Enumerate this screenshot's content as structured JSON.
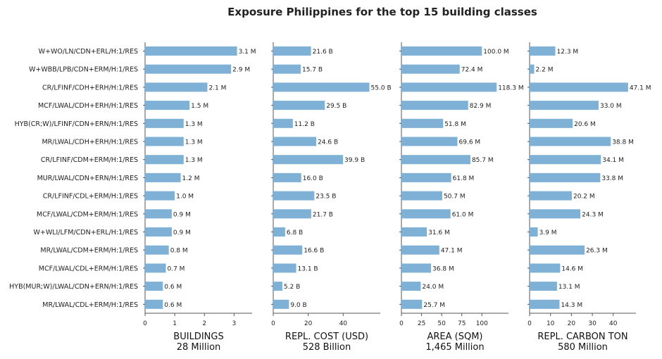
{
  "title": "Exposure Philippines for the top 15 building classes",
  "colors": {
    "bar": "#7fb0d5",
    "axis": "#555555",
    "text": "#222222"
  },
  "chart_data": {
    "type": "bar",
    "orientation": "horizontal",
    "title": "Exposure Philippines for the top 15 building classes",
    "categories": [
      "W+WO/LN/CDN+ERL/H:1/RES",
      "W+WBB/LPB/CDN+ERM/H:1/RES",
      "CR/LFINF/CDH+ERH/H:1/RES",
      "MCF/LWAL/CDH+ERH/H:1/RES",
      "HYB(CR;W)/LFINF/CDN+ERN/H:1/RES",
      "MR/LWAL/CDH+ERH/H:1/RES",
      "CR/LFINF/CDM+ERM/H:1/RES",
      "MUR/LWAL/CDN+ERN/H:1/RES",
      "CR/LFINF/CDL+ERM/H:1/RES",
      "MCF/LWAL/CDM+ERM/H:1/RES",
      "W+WLI/LFM/CDN+ERL/H:1/RES",
      "MR/LWAL/CDM+ERM/H:1/RES",
      "MCF/LWAL/CDL+ERM/H:1/RES",
      "HYB(MUR;W)/LWAL/CDN+ERN/H:1/RES",
      "MR/LWAL/CDL+ERM/H:1/RES"
    ],
    "series": [
      {
        "xlabel": "BUILDINGS",
        "total": "28 Million",
        "xlim": [
          0,
          3.3
        ],
        "ticks": [
          "0",
          "1",
          "2",
          "3"
        ],
        "tick_values": [
          0,
          1,
          2,
          3
        ],
        "values": [
          3.1,
          2.9,
          2.1,
          1.5,
          1.3,
          1.3,
          1.3,
          1.2,
          1.0,
          0.9,
          0.9,
          0.8,
          0.7,
          0.6,
          0.6
        ],
        "labels": [
          "3.1 M",
          "2.9 M",
          "2.1 M",
          "1.5 M",
          "1.3 M",
          "1.3 M",
          "1.3 M",
          "1.2 M",
          "1.0 M",
          "0.9 M",
          "0.9 M",
          "0.8 M",
          "0.7 M",
          "0.6 M",
          "0.6 M"
        ]
      },
      {
        "xlabel": "REPL. COST (USD)",
        "total": "528 Billion",
        "xlim": [
          0,
          58
        ],
        "ticks": [
          "0",
          "20",
          "40"
        ],
        "tick_values": [
          0,
          20,
          40
        ],
        "values": [
          21.6,
          15.7,
          55.0,
          29.5,
          11.2,
          24.6,
          39.9,
          16.0,
          23.5,
          21.7,
          6.8,
          16.6,
          13.1,
          5.2,
          9.0
        ],
        "labels": [
          "21.6 B",
          "15.7 B",
          "55.0 B",
          "29.5 B",
          "11.2 B",
          "24.6 B",
          "39.9 B",
          "16.0 B",
          "23.5 B",
          "21.7 B",
          "6.8 B",
          "16.6 B",
          "13.1 B",
          "5.2 B",
          "9.0 B"
        ]
      },
      {
        "xlabel": "AREA (SQM)",
        "total": "1,465 Million",
        "xlim": [
          0,
          126
        ],
        "ticks": [
          "0",
          "25",
          "50",
          "75",
          "100"
        ],
        "tick_values": [
          0,
          25,
          50,
          75,
          100
        ],
        "values": [
          100.0,
          72.4,
          118.3,
          82.9,
          51.8,
          69.6,
          85.7,
          61.8,
          50.7,
          61.0,
          31.6,
          47.1,
          36.8,
          24.0,
          25.7
        ],
        "labels": [
          "100.0 M",
          "72.4 M",
          "118.3 M",
          "82.9 M",
          "51.8 M",
          "69.6 M",
          "85.7 M",
          "61.8 M",
          "50.7 M",
          "61.0 M",
          "31.6 M",
          "47.1 M",
          "36.8 M",
          "24.0 M",
          "25.7 M"
        ]
      },
      {
        "xlabel": "REPL. CARBON TON",
        "total": "580 Million",
        "xlim": [
          0,
          48.5
        ],
        "ticks": [
          "0",
          "10",
          "20",
          "30",
          "40"
        ],
        "tick_values": [
          0,
          10,
          20,
          30,
          40
        ],
        "values": [
          12.3,
          2.2,
          47.1,
          33.0,
          20.6,
          38.8,
          34.1,
          33.8,
          20.2,
          24.3,
          3.9,
          26.3,
          14.6,
          13.1,
          14.3
        ],
        "labels": [
          "12.3 M",
          "2.2 M",
          "47.1 M",
          "33.0 M",
          "20.6 M",
          "38.8 M",
          "34.1 M",
          "33.8 M",
          "20.2 M",
          "24.3 M",
          "3.9 M",
          "26.3 M",
          "14.6 M",
          "13.1 M",
          "14.3 M"
        ]
      }
    ],
    "grid": false,
    "legend": "none"
  }
}
